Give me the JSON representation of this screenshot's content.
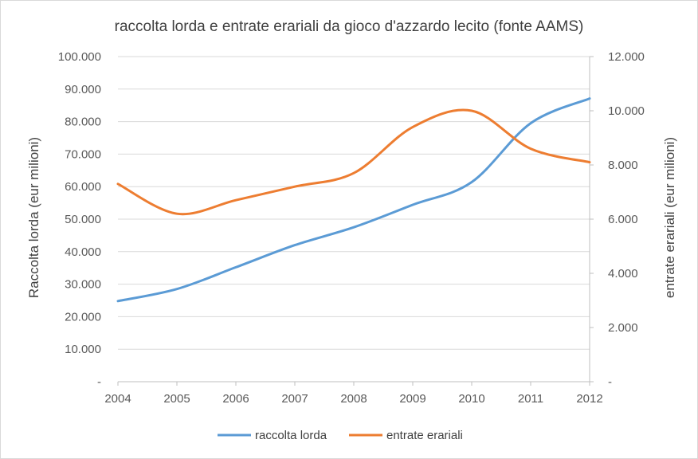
{
  "chart_data": {
    "type": "line",
    "title": "raccolta lorda e entrate erariali da gioco d'azzardo lecito (fonte AAMS)",
    "xlabel": "",
    "ylabel": "Raccolta lorda (eur milioni)",
    "y2label": "entrate erariali (eur milioni)",
    "categories": [
      "2004",
      "2005",
      "2006",
      "2007",
      "2008",
      "2009",
      "2010",
      "2011",
      "2012"
    ],
    "ylim": [
      0,
      100000
    ],
    "y2lim": [
      0,
      12000
    ],
    "y_ticks": [
      "-",
      "10.000",
      "20.000",
      "30.000",
      "40.000",
      "50.000",
      "60.000",
      "70.000",
      "80.000",
      "90.000",
      "100.000"
    ],
    "y2_ticks": [
      "-",
      "2.000",
      "4.000",
      "6.000",
      "8.000",
      "10.000",
      "12.000"
    ],
    "grid": true,
    "legend_position": "bottom",
    "series": [
      {
        "name": "raccolta lorda",
        "axis": "left",
        "color": "#5b9bd5",
        "values": [
          24800,
          28500,
          35200,
          42000,
          47500,
          54400,
          61400,
          79500,
          87100
        ]
      },
      {
        "name": "entrate erariali",
        "axis": "right",
        "color": "#ed7d31",
        "values": [
          7300,
          6200,
          6700,
          7200,
          7700,
          9400,
          10000,
          8600,
          8100
        ]
      }
    ]
  }
}
